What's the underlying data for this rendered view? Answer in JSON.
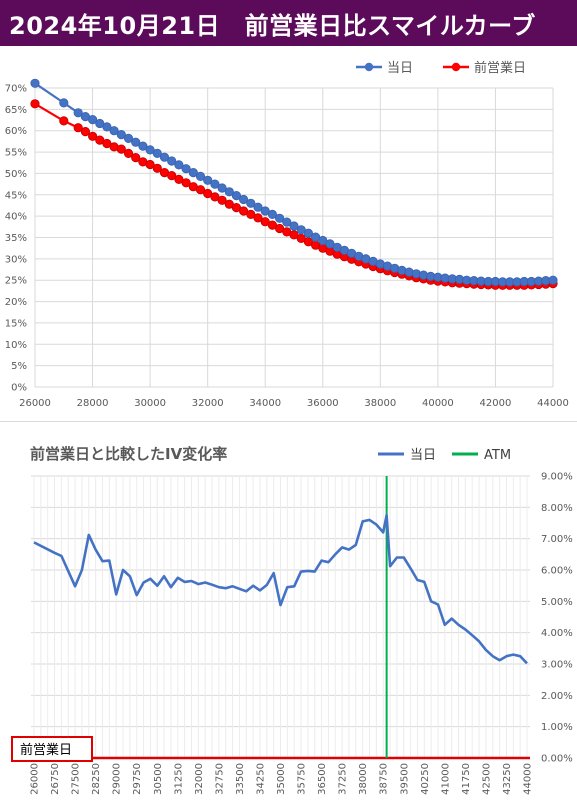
{
  "header": {
    "title": "2024年10月21日　前営業日比スマイルカーブ"
  },
  "colors": {
    "header_bg": "#5c0a5a",
    "today": "#4472c4",
    "prev": "#ff0000",
    "iv_line": "#4472c4",
    "atm": "#00b050",
    "baseline": "#e00000"
  },
  "chart_data": [
    {
      "type": "line",
      "title": "",
      "legend": [
        "当日",
        "前営業日"
      ],
      "legend_position": "top-right",
      "xlabel": "",
      "ylabel": "",
      "xlim": [
        26000,
        44000
      ],
      "ylim": [
        0,
        0.7
      ],
      "x_ticks": [
        26000,
        28000,
        30000,
        32000,
        34000,
        36000,
        38000,
        40000,
        42000,
        44000
      ],
      "y_ticks": [
        0,
        0.05,
        0.1,
        0.15,
        0.2,
        0.25,
        0.3,
        0.35,
        0.4,
        0.45,
        0.5,
        0.55,
        0.6,
        0.65,
        0.7
      ],
      "y_tick_labels": [
        "0%",
        "5%",
        "10%",
        "15%",
        "20%",
        "25%",
        "30%",
        "35%",
        "40%",
        "45%",
        "50%",
        "55%",
        "60%",
        "65%",
        "70%"
      ],
      "grid": true,
      "series": [
        {
          "name": "当日",
          "x": [
            26000,
            27000,
            27500,
            27750,
            28000,
            28250,
            28500,
            28750,
            29000,
            29250,
            29500,
            29750,
            30000,
            30250,
            30500,
            30750,
            31000,
            31250,
            31500,
            31750,
            32000,
            32250,
            32500,
            32750,
            33000,
            33250,
            33500,
            33750,
            34000,
            34250,
            34500,
            34750,
            35000,
            35250,
            35500,
            35750,
            36000,
            36250,
            36500,
            36750,
            37000,
            37250,
            37500,
            37750,
            38000,
            38250,
            38500,
            38750,
            39000,
            39250,
            39500,
            39750,
            40000,
            40250,
            40500,
            40750,
            41000,
            41250,
            41500,
            41750,
            42000,
            42250,
            42500,
            42750,
            43000,
            43250,
            43500,
            43750,
            44000
          ],
          "y": [
            0.711,
            0.665,
            0.642,
            0.633,
            0.626,
            0.617,
            0.609,
            0.6,
            0.591,
            0.582,
            0.573,
            0.564,
            0.555,
            0.547,
            0.538,
            0.529,
            0.52,
            0.511,
            0.502,
            0.493,
            0.484,
            0.475,
            0.466,
            0.457,
            0.448,
            0.439,
            0.43,
            0.421,
            0.412,
            0.404,
            0.395,
            0.386,
            0.377,
            0.368,
            0.36,
            0.351,
            0.343,
            0.335,
            0.327,
            0.32,
            0.313,
            0.306,
            0.3,
            0.294,
            0.288,
            0.283,
            0.278,
            0.273,
            0.269,
            0.265,
            0.262,
            0.259,
            0.257,
            0.255,
            0.253,
            0.252,
            0.25,
            0.249,
            0.248,
            0.247,
            0.247,
            0.246,
            0.246,
            0.246,
            0.247,
            0.247,
            0.248,
            0.249,
            0.25
          ]
        },
        {
          "name": "前営業日",
          "x": [
            26000,
            27000,
            27500,
            27750,
            28000,
            28250,
            28500,
            28750,
            29000,
            29250,
            29500,
            29750,
            30000,
            30250,
            30500,
            30750,
            31000,
            31250,
            31500,
            31750,
            32000,
            32250,
            32500,
            32750,
            33000,
            33250,
            33500,
            33750,
            34000,
            34250,
            34500,
            34750,
            35000,
            35250,
            35500,
            35750,
            36000,
            36250,
            36500,
            36750,
            37000,
            37250,
            37500,
            37750,
            38000,
            38250,
            38500,
            38750,
            39000,
            39250,
            39500,
            39750,
            40000,
            40250,
            40500,
            40750,
            41000,
            41250,
            41500,
            41750,
            42000,
            42250,
            42500,
            42750,
            43000,
            43250,
            43500,
            43750,
            44000
          ],
          "y": [
            0.663,
            0.623,
            0.607,
            0.598,
            0.587,
            0.578,
            0.57,
            0.562,
            0.557,
            0.547,
            0.537,
            0.527,
            0.521,
            0.512,
            0.502,
            0.495,
            0.486,
            0.478,
            0.469,
            0.462,
            0.453,
            0.445,
            0.437,
            0.428,
            0.42,
            0.412,
            0.404,
            0.396,
            0.387,
            0.379,
            0.371,
            0.363,
            0.356,
            0.348,
            0.34,
            0.332,
            0.325,
            0.318,
            0.311,
            0.305,
            0.299,
            0.293,
            0.288,
            0.282,
            0.277,
            0.272,
            0.268,
            0.264,
            0.26,
            0.256,
            0.253,
            0.25,
            0.248,
            0.246,
            0.244,
            0.243,
            0.242,
            0.241,
            0.24,
            0.239,
            0.238,
            0.238,
            0.238,
            0.238,
            0.238,
            0.239,
            0.24,
            0.241,
            0.242
          ]
        }
      ]
    },
    {
      "type": "line",
      "title": "前営業日と比較したIV変化率",
      "legend": [
        "当日",
        "ATM"
      ],
      "legend_position": "top-right",
      "xlabel": "",
      "ylabel": "",
      "ylim": [
        0,
        0.09
      ],
      "y_ticks": [
        0,
        0.01,
        0.02,
        0.03,
        0.04,
        0.05,
        0.06,
        0.07,
        0.08,
        0.09
      ],
      "y_tick_labels": [
        "0.00%",
        "1.00%",
        "2.00%",
        "3.00%",
        "4.00%",
        "5.00%",
        "6.00%",
        "7.00%",
        "8.00%",
        "9.00%"
      ],
      "grid": true,
      "atm": 38875,
      "baseline_label": "前営業日",
      "categories": [
        26000,
        26750,
        27500,
        28250,
        29000,
        29750,
        30500,
        31250,
        32000,
        32750,
        33500,
        34250,
        35000,
        35750,
        36500,
        37250,
        38000,
        38750,
        39500,
        40250,
        41000,
        41750,
        42500,
        43250,
        44000
      ],
      "series": [
        {
          "name": "当日",
          "x": [
            26000,
            26750,
            27000,
            27500,
            27750,
            28000,
            28250,
            28500,
            28750,
            29000,
            29250,
            29500,
            29750,
            30000,
            30250,
            30500,
            30750,
            31000,
            31250,
            31500,
            31750,
            32000,
            32250,
            32500,
            32750,
            33000,
            33250,
            33500,
            33750,
            34000,
            34250,
            34500,
            34750,
            35000,
            35250,
            35500,
            35750,
            36000,
            36250,
            36500,
            36750,
            37000,
            37250,
            37500,
            37750,
            38000,
            38250,
            38500,
            38750,
            38875,
            39000,
            39250,
            39500,
            39750,
            40000,
            40250,
            40500,
            40750,
            41000,
            41250,
            41500,
            41750,
            42000,
            42250,
            42500,
            42750,
            43000,
            43250,
            43500,
            43750,
            44000
          ],
          "y": [
            0.0688,
            0.0655,
            0.0645,
            0.0548,
            0.06,
            0.0712,
            0.0665,
            0.0628,
            0.063,
            0.0522,
            0.06,
            0.058,
            0.052,
            0.056,
            0.0572,
            0.055,
            0.058,
            0.0545,
            0.0575,
            0.0562,
            0.0565,
            0.0555,
            0.056,
            0.0553,
            0.0545,
            0.0542,
            0.0548,
            0.054,
            0.0532,
            0.055,
            0.0535,
            0.0552,
            0.059,
            0.0488,
            0.0545,
            0.0548,
            0.0595,
            0.0597,
            0.0595,
            0.063,
            0.0625,
            0.065,
            0.0672,
            0.0665,
            0.068,
            0.0755,
            0.076,
            0.0745,
            0.072,
            0.0775,
            0.0612,
            0.064,
            0.064,
            0.0605,
            0.0568,
            0.0562,
            0.05,
            0.049,
            0.0425,
            0.0445,
            0.0425,
            0.041,
            0.0392,
            0.0372,
            0.0345,
            0.0325,
            0.0312,
            0.0325,
            0.033,
            0.0325,
            0.0302
          ]
        }
      ]
    }
  ]
}
